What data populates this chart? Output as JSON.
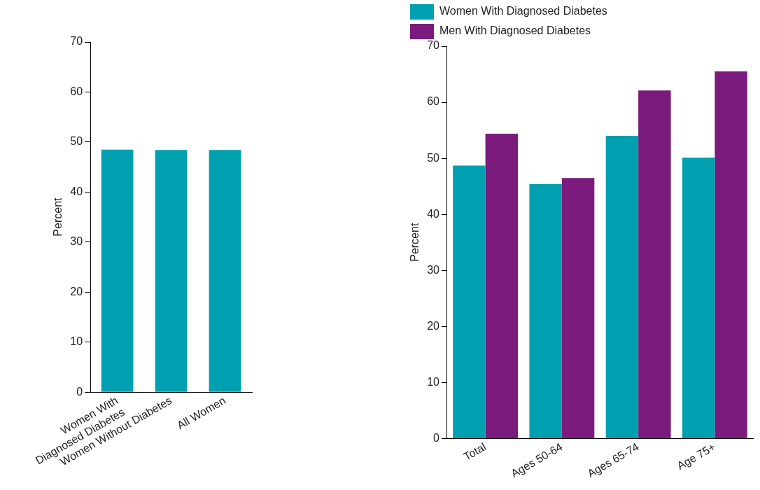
{
  "chart_data": [
    {
      "type": "bar",
      "ylabel": "Percent",
      "categories": [
        "Women With\nDiagnosed Diabetes",
        "Women Without Diabetes",
        "All Women"
      ],
      "values": [
        48.5,
        48.4,
        48.4
      ],
      "color": "#00a0b0",
      "ylim": [
        0,
        70
      ],
      "yticks": [
        0,
        10,
        20,
        30,
        40,
        50,
        60,
        70
      ],
      "grid": false,
      "legend": false
    },
    {
      "type": "bar",
      "ylabel": "Percent",
      "categories": [
        "Total",
        "Ages 50-64",
        "Ages 65-74",
        "Age 75+"
      ],
      "series": [
        {
          "name": "Women With Diagnosed Diabetes",
          "color": "#00a0b0",
          "values": [
            48.7,
            45.4,
            54.0,
            50.1
          ]
        },
        {
          "name": "Men With Diagnosed Diabetes",
          "color": "#7b1b7e",
          "values": [
            54.4,
            46.5,
            62.1,
            65.5
          ]
        }
      ],
      "ylim": [
        0,
        70
      ],
      "yticks": [
        0,
        10,
        20,
        30,
        40,
        50,
        60,
        70
      ],
      "grid": false,
      "legend": "top left"
    }
  ]
}
